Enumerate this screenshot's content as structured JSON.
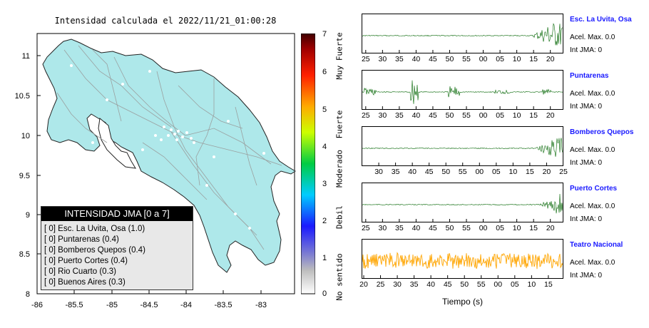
{
  "map": {
    "title": "Intensidad calculada el 2022/11/21_01:00:28",
    "x_ticks": [
      "-86",
      "-85.5",
      "-85",
      "-84.5",
      "-84",
      "-83.5",
      "-83"
    ],
    "y_ticks": [
      "11",
      "10.5",
      "10",
      "9.5",
      "9",
      "8.5",
      "8"
    ],
    "land_color": "#aee8ea"
  },
  "legend": {
    "header": "INTENSIDAD JMA [0 a 7]",
    "items": [
      "[ 0]  Esc. La Uvita, Osa (1.0)",
      "[ 0]  Puntarenas (0.4)",
      "[ 0]  Bomberos Quepos (0.4)",
      "[ 0]  Puerto Cortes (0.4)",
      "[ 0]  Rio Cuarto (0.3)",
      "[ 0]  Buenos Aires (0.3)"
    ]
  },
  "scale": {
    "ticks": [
      "7",
      "6",
      "5",
      "4",
      "3",
      "2",
      "1",
      "0"
    ],
    "categories": [
      "Muy Fuerte",
      "Fuerte",
      "Moderado",
      "Debil",
      "No sentido"
    ]
  },
  "stations": [
    {
      "name": "Esc. La Uvita, Osa",
      "accel": "Acel. Max. 0.0",
      "jma": "Int JMA: 0",
      "color": "#006400",
      "ticks": [
        "25",
        "30",
        "35",
        "40",
        "45",
        "50",
        "55",
        "00",
        "05",
        "10",
        "15",
        "20"
      ]
    },
    {
      "name": "Puntarenas",
      "accel": "Acel. Max. 0.0",
      "jma": "Int JMA: 0",
      "color": "#006400",
      "ticks": [
        "25",
        "30",
        "35",
        "40",
        "45",
        "50",
        "55",
        "00",
        "05",
        "10",
        "15",
        "20"
      ]
    },
    {
      "name": "Bomberos Quepos",
      "accel": "Acel. Max. 0.0",
      "jma": "Int JMA: 0",
      "color": "#006400",
      "ticks": [
        "30",
        "35",
        "40",
        "45",
        "50",
        "55",
        "00",
        "05",
        "10",
        "15",
        "20",
        "25"
      ]
    },
    {
      "name": "Puerto Cortes",
      "accel": "Acel. Max. 0.0",
      "jma": "Int JMA: 0",
      "color": "#006400",
      "ticks": [
        "25",
        "30",
        "35",
        "40",
        "45",
        "50",
        "55",
        "00",
        "05",
        "10",
        "15",
        "20"
      ]
    },
    {
      "name": "Teatro Nacional",
      "accel": "Acel. Max. 0.0",
      "jma": "Int JMA: 0",
      "color": "#ffa500",
      "ticks": [
        "20",
        "25",
        "30",
        "35",
        "40",
        "45",
        "50",
        "55",
        "00",
        "05",
        "10",
        "15"
      ]
    }
  ],
  "time_axis_label": "Tiempo (s)"
}
